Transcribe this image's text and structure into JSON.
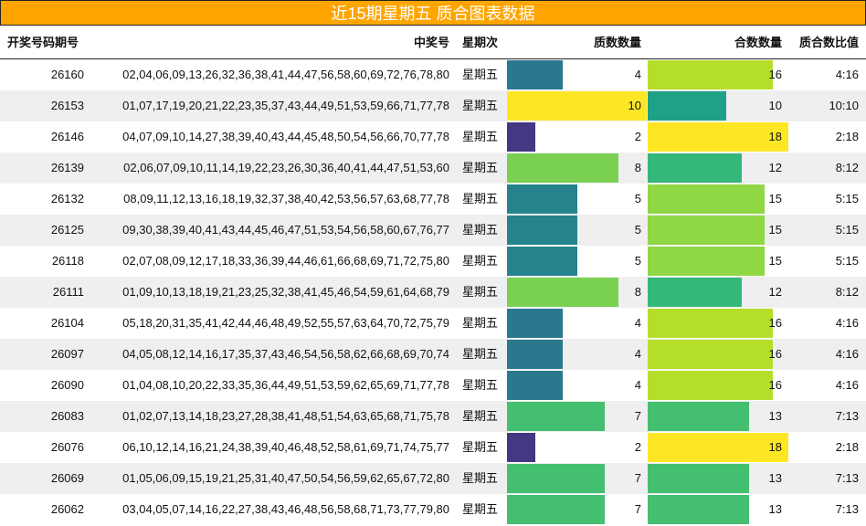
{
  "title": "近15期星期五 质合图表数据",
  "table": {
    "header": [
      "开奖号码期号",
      "中奖号",
      "星期次",
      "质数数量",
      "合数数量",
      "质合数比值"
    ],
    "rows": [
      [
        "26160",
        "02,04,06,09,13,26,32,36,38,41,44,47,56,58,60,69,72,76,78,80",
        "星期五",
        4,
        16,
        "4:16"
      ],
      [
        "26153",
        "01,07,17,19,20,21,22,23,35,37,43,44,49,51,53,59,66,71,77,78",
        "星期五",
        10,
        10,
        "10:10"
      ],
      [
        "26146",
        "04,07,09,10,14,27,38,39,40,43,44,45,48,50,54,56,66,70,77,78",
        "星期五",
        2,
        18,
        "2:18"
      ],
      [
        "26139",
        "02,06,07,09,10,11,14,19,22,23,26,30,36,40,41,44,47,51,53,60",
        "星期五",
        8,
        12,
        "8:12"
      ],
      [
        "26132",
        "08,09,11,12,13,16,18,19,32,37,38,40,42,53,56,57,63,68,77,78",
        "星期五",
        5,
        15,
        "5:15"
      ],
      [
        "26125",
        "09,30,38,39,40,41,43,44,45,46,47,51,53,54,56,58,60,67,76,77",
        "星期五",
        5,
        15,
        "5:15"
      ],
      [
        "26118",
        "02,07,08,09,12,17,18,33,36,39,44,46,61,66,68,69,71,72,75,80",
        "星期五",
        5,
        15,
        "5:15"
      ],
      [
        "26111",
        "01,09,10,13,18,19,21,23,25,32,38,41,45,46,54,59,61,64,68,79",
        "星期五",
        8,
        12,
        "8:12"
      ],
      [
        "26104",
        "05,18,20,31,35,41,42,44,46,48,49,52,55,57,63,64,70,72,75,79",
        "星期五",
        4,
        16,
        "4:16"
      ],
      [
        "26097",
        "04,05,08,12,14,16,17,35,37,43,46,54,56,58,62,66,68,69,70,74",
        "星期五",
        4,
        16,
        "4:16"
      ],
      [
        "26090",
        "01,04,08,10,20,22,33,35,36,44,49,51,53,59,62,65,69,71,77,78",
        "星期五",
        4,
        16,
        "4:16"
      ],
      [
        "26083",
        "01,02,07,13,14,18,23,27,28,38,41,48,51,54,63,65,68,71,75,78",
        "星期五",
        7,
        13,
        "7:13"
      ],
      [
        "26076",
        "06,10,12,14,16,21,24,38,39,40,46,48,52,58,61,69,71,74,75,77",
        "星期五",
        2,
        18,
        "2:18"
      ],
      [
        "26069",
        "01,05,06,09,15,19,21,25,31,40,47,50,54,56,59,62,65,67,72,80",
        "星期五",
        7,
        13,
        "7:13"
      ],
      [
        "26062",
        "03,04,05,07,14,16,22,27,38,43,46,48,56,58,68,71,73,77,79,80",
        "星期五",
        7,
        13,
        "7:13"
      ]
    ],
    "prime_colors": [
      "#2a788e",
      "#fde725",
      "#453781",
      "#7ad151",
      "#25838e",
      "#25838e",
      "#25838e",
      "#7ad151",
      "#2a788e",
      "#2a788e",
      "#2a788e",
      "#44bf70",
      "#453781",
      "#44bf70",
      "#44bf70"
    ],
    "composite_colors": [
      "#b5de2b",
      "#1fa187",
      "#fde725",
      "#35b779",
      "#8fd744",
      "#8fd744",
      "#8fd744",
      "#35b779",
      "#b5de2b",
      "#b5de2b",
      "#b5de2b",
      "#44bf70",
      "#fde725",
      "#44bf70",
      "#44bf70"
    ]
  }
}
